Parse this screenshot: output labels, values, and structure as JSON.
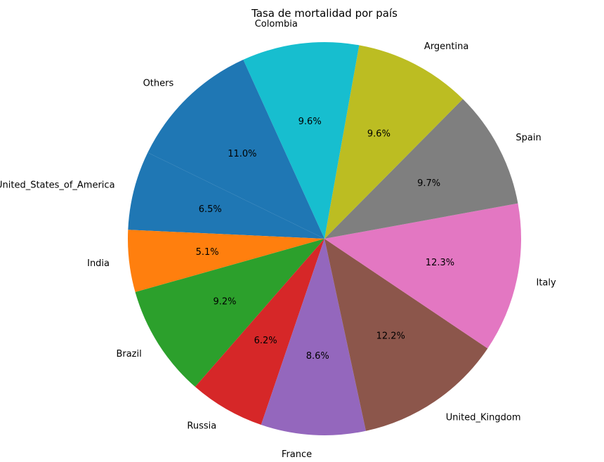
{
  "chart_data": {
    "type": "pie",
    "title": "Tasa de mortalidad por país",
    "start_angle_deg": 154,
    "direction": "counterclockwise",
    "slices": [
      {
        "label": "United_States_of_America",
        "value": 6.5,
        "pct_label": "6.5%",
        "color": "#1f77b4"
      },
      {
        "label": "India",
        "value": 5.1,
        "pct_label": "5.1%",
        "color": "#ff7f0e"
      },
      {
        "label": "Brazil",
        "value": 9.2,
        "pct_label": "9.2%",
        "color": "#2ca02c"
      },
      {
        "label": "Russia",
        "value": 6.2,
        "pct_label": "6.2%",
        "color": "#d62728"
      },
      {
        "label": "France",
        "value": 8.6,
        "pct_label": "8.6%",
        "color": "#9467bd"
      },
      {
        "label": "United_Kingdom",
        "value": 12.2,
        "pct_label": "12.2%",
        "color": "#8c564b"
      },
      {
        "label": "Italy",
        "value": 12.3,
        "pct_label": "12.3%",
        "color": "#e377c2"
      },
      {
        "label": "Spain",
        "value": 9.7,
        "pct_label": "9.7%",
        "color": "#7f7f7f"
      },
      {
        "label": "Argentina",
        "value": 9.6,
        "pct_label": "9.6%",
        "color": "#bcbd22"
      },
      {
        "label": "Colombia",
        "value": 9.6,
        "pct_label": "9.6%",
        "color": "#17becf"
      },
      {
        "label": "Others",
        "value": 11.0,
        "pct_label": "11.0%",
        "color": "#1f77b4"
      }
    ]
  }
}
